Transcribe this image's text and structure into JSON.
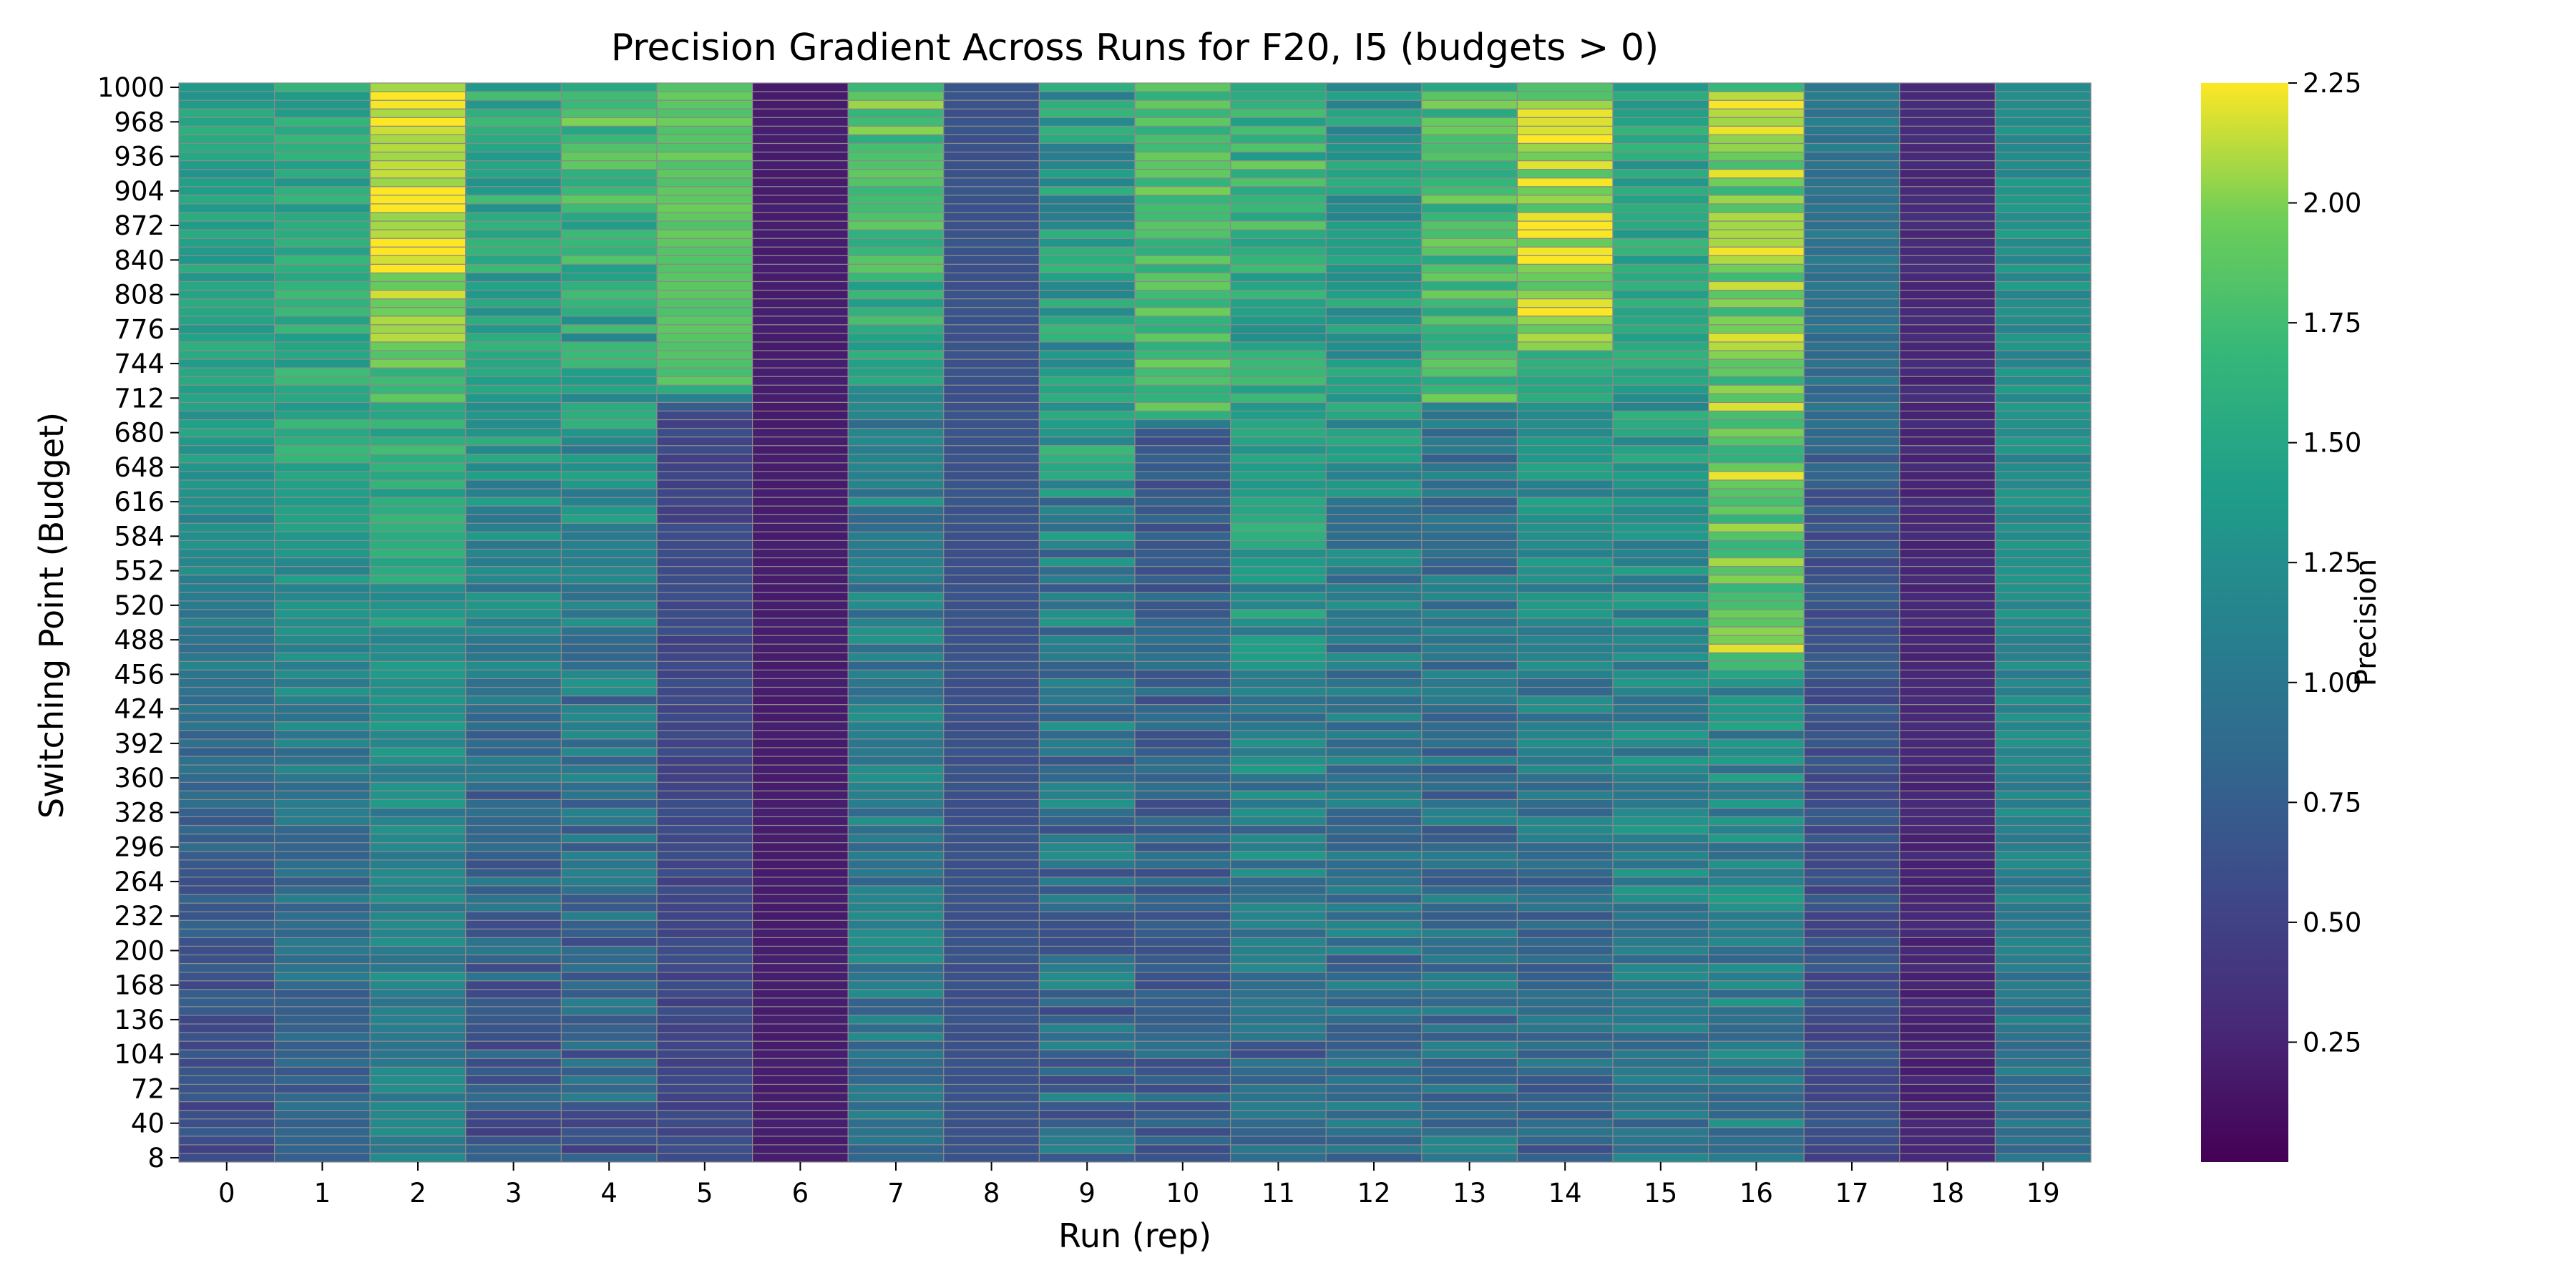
{
  "chart_data": {
    "type": "heatmap",
    "title": "Precision Gradient Across Runs for F20, I5 (budgets > 0)",
    "xlabel": "Run (rep)",
    "ylabel": "Switching Point (Budget)",
    "x_categories": [
      "0",
      "1",
      "2",
      "3",
      "4",
      "5",
      "6",
      "7",
      "8",
      "9",
      "10",
      "11",
      "12",
      "13",
      "14",
      "15",
      "16",
      "17",
      "18",
      "19"
    ],
    "y_range": [
      8,
      1000
    ],
    "y_step": 8,
    "y_tick_labels": [
      "8",
      "40",
      "72",
      "104",
      "136",
      "168",
      "200",
      "232",
      "264",
      "296",
      "328",
      "360",
      "392",
      "424",
      "456",
      "488",
      "520",
      "552",
      "584",
      "616",
      "648",
      "680",
      "712",
      "744",
      "776",
      "808",
      "840",
      "872",
      "904",
      "936",
      "968",
      "1000"
    ],
    "colorbar": {
      "label": "Precision",
      "range": [
        0.0,
        2.25
      ],
      "ticks": [
        "0.25",
        "0.50",
        "0.75",
        "1.00",
        "1.25",
        "1.50",
        "1.75",
        "2.00",
        "2.25"
      ],
      "colormap": "viridis"
    },
    "grid": true,
    "run_profiles": [
      {
        "run": "0",
        "segments": [
          [
            8,
            0.55
          ],
          [
            300,
            0.75
          ],
          [
            720,
            1.45
          ],
          [
            1000,
            1.45
          ]
        ],
        "noise": 0.15
      },
      {
        "run": "1",
        "segments": [
          [
            8,
            0.75
          ],
          [
            400,
            1.05
          ],
          [
            680,
            1.55
          ],
          [
            1000,
            1.5
          ]
        ],
        "noise": 0.2
      },
      {
        "run": "2",
        "segments": [
          [
            8,
            1.1
          ],
          [
            400,
            1.2
          ],
          [
            700,
            1.65
          ],
          [
            840,
            2.2
          ],
          [
            1000,
            2.25
          ]
        ],
        "noise": 0.2
      },
      {
        "run": "3",
        "segments": [
          [
            8,
            0.7
          ],
          [
            400,
            0.9
          ],
          [
            700,
            1.4
          ],
          [
            1000,
            1.6
          ]
        ],
        "noise": 0.25
      },
      {
        "run": "4",
        "segments": [
          [
            8,
            0.75
          ],
          [
            500,
            1.05
          ],
          [
            760,
            1.45
          ],
          [
            1000,
            1.75
          ]
        ],
        "noise": 0.3
      },
      {
        "run": "5",
        "segments": [
          [
            8,
            0.55
          ],
          [
            700,
            0.55
          ],
          [
            725,
            1.85
          ],
          [
            1000,
            1.9
          ]
        ],
        "noise": 0.08
      },
      {
        "run": "6",
        "segments": [
          [
            8,
            0.2
          ],
          [
            1000,
            0.2
          ]
        ],
        "noise": 0.02
      },
      {
        "run": "7",
        "segments": [
          [
            8,
            1.0
          ],
          [
            700,
            1.1
          ],
          [
            760,
            1.6
          ],
          [
            1000,
            1.85
          ]
        ],
        "noise": 0.25
      },
      {
        "run": "8",
        "segments": [
          [
            8,
            0.65
          ],
          [
            1000,
            0.65
          ]
        ],
        "noise": 0.04
      },
      {
        "run": "9",
        "segments": [
          [
            8,
            0.85
          ],
          [
            620,
            1.1
          ],
          [
            640,
            1.4
          ],
          [
            1000,
            1.4
          ]
        ],
        "noise": 0.35
      },
      {
        "run": "10",
        "segments": [
          [
            8,
            0.8
          ],
          [
            680,
            0.75
          ],
          [
            700,
            1.75
          ],
          [
            1000,
            1.8
          ]
        ],
        "noise": 0.2
      },
      {
        "run": "11",
        "segments": [
          [
            8,
            0.8
          ],
          [
            400,
            1.15
          ],
          [
            760,
            1.55
          ],
          [
            1000,
            1.7
          ]
        ],
        "noise": 0.3
      },
      {
        "run": "12",
        "segments": [
          [
            8,
            0.9
          ],
          [
            620,
            1.1
          ],
          [
            640,
            1.35
          ],
          [
            1000,
            1.35
          ]
        ],
        "noise": 0.25
      },
      {
        "run": "13",
        "segments": [
          [
            8,
            0.95
          ],
          [
            700,
            0.95
          ],
          [
            710,
            1.75
          ],
          [
            1000,
            1.75
          ]
        ],
        "noise": 0.25
      },
      {
        "run": "14",
        "segments": [
          [
            8,
            0.85
          ],
          [
            380,
            1.0
          ],
          [
            750,
            1.45
          ],
          [
            760,
            2.05
          ],
          [
            1000,
            2.05
          ]
        ],
        "noise": 0.25
      },
      {
        "run": "15",
        "segments": [
          [
            8,
            1.0
          ],
          [
            500,
            1.2
          ],
          [
            800,
            1.5
          ],
          [
            1000,
            1.55
          ]
        ],
        "noise": 0.25
      },
      {
        "run": "16",
        "segments": [
          [
            8,
            1.05
          ],
          [
            450,
            1.2
          ],
          [
            480,
            1.9
          ],
          [
            1000,
            1.95
          ]
        ],
        "noise": 0.3
      },
      {
        "run": "17",
        "segments": [
          [
            8,
            0.6
          ],
          [
            600,
            0.65
          ],
          [
            700,
            0.9
          ],
          [
            1000,
            1.05
          ]
        ],
        "noise": 0.12
      },
      {
        "run": "18",
        "segments": [
          [
            8,
            0.25
          ],
          [
            1000,
            0.3
          ]
        ],
        "noise": 0.05
      },
      {
        "run": "19",
        "segments": [
          [
            8,
            0.9
          ],
          [
            250,
            1.1
          ],
          [
            680,
            1.25
          ],
          [
            1000,
            1.3
          ]
        ],
        "noise": 0.15
      }
    ]
  }
}
